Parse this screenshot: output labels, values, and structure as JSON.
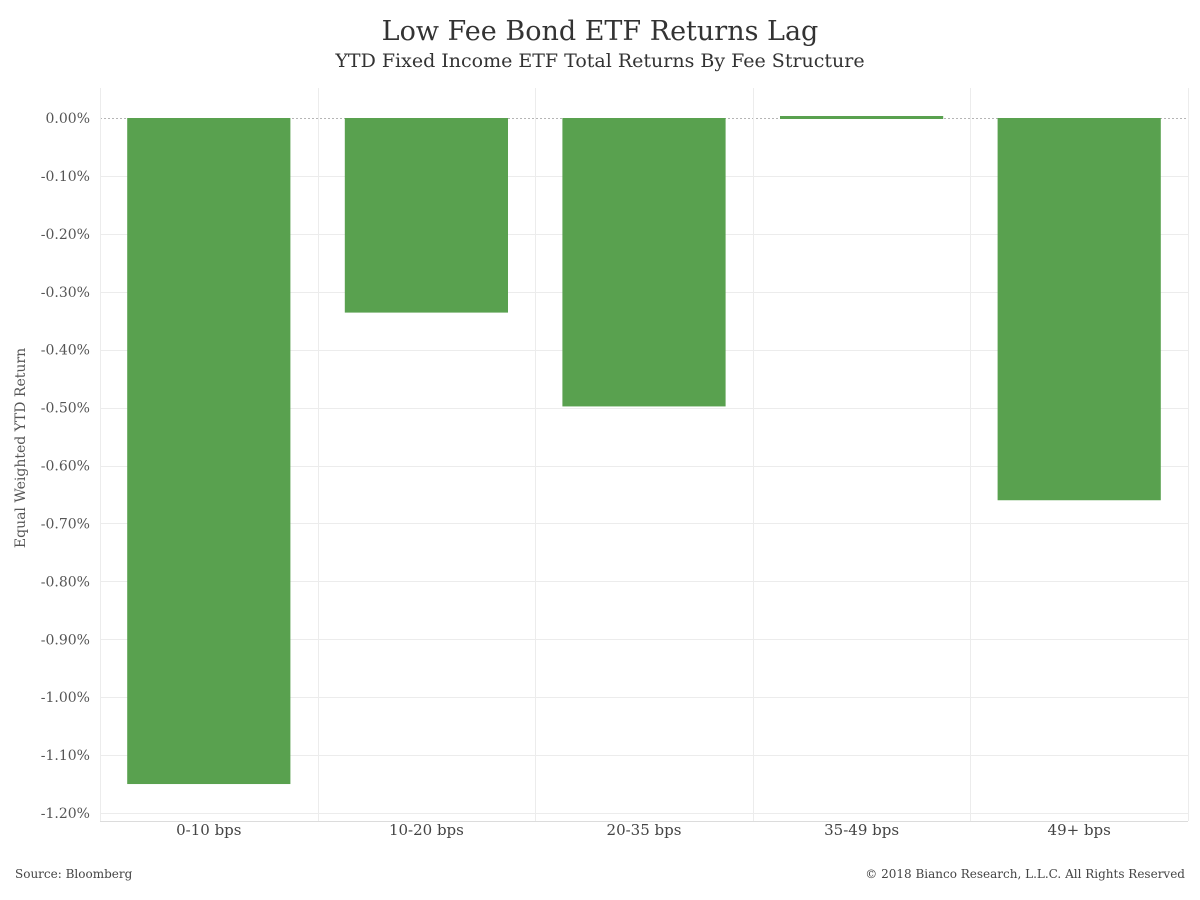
{
  "chart_data": {
    "type": "bar",
    "title": "Low Fee Bond ETF Returns Lag",
    "subtitle": "YTD Fixed Income ETF Total Returns By Fee Structure",
    "ylabel": "Equal Weighted YTD Return",
    "xlabel": "",
    "categories": [
      "0-10 bps",
      "10-20 bps",
      "20-35 bps",
      "35-49 bps",
      "49+ bps"
    ],
    "values": [
      -1.15,
      -0.336,
      -0.498,
      0.003,
      -0.66
    ],
    "unit": "%",
    "ylim": [
      -1.2,
      0.0
    ],
    "yticks": [
      0.0,
      -0.1,
      -0.2,
      -0.3,
      -0.4,
      -0.5,
      -0.6,
      -0.7,
      -0.8,
      -0.9,
      -1.0,
      -1.1,
      -1.2
    ],
    "ytick_labels": [
      "0.00%",
      "-0.10%",
      "-0.20%",
      "-0.30%",
      "-0.40%",
      "-0.50%",
      "-0.60%",
      "-0.70%",
      "-0.80%",
      "-0.90%",
      "-1.00%",
      "-1.10%",
      "-1.20%"
    ],
    "bar_color": "#59a14f",
    "grid": true,
    "legend": "none"
  },
  "footer": {
    "source": "Source: Bloomberg",
    "copyright": "© 2018 Bianco Research, L.L.C. All Rights Reserved"
  }
}
